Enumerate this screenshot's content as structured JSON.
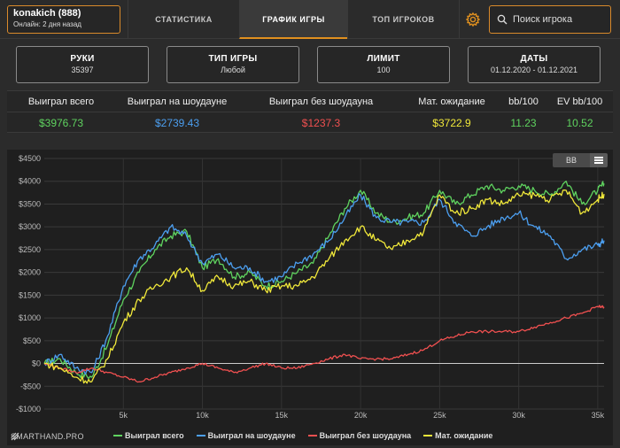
{
  "profile": {
    "name": "konakich (888)",
    "status": "Онлайн: 2 дня назад"
  },
  "nav": {
    "tabs": [
      {
        "label": "СТАТИСТИКА",
        "active": false
      },
      {
        "label": "ГРАФИК ИГРЫ",
        "active": true
      },
      {
        "label": "ТОП ИГРОКОВ",
        "active": false
      }
    ],
    "settings_icon": "gear-icon",
    "search": {
      "placeholder": "Поиск игрока",
      "icon": "search-icon"
    }
  },
  "filters": [
    {
      "title": "РУКИ",
      "value": "35397"
    },
    {
      "title": "ТИП ИГРЫ",
      "value": "Любой"
    },
    {
      "title": "ЛИМИТ",
      "value": "100"
    },
    {
      "title": "ДАТЫ",
      "value": "01.12.2020 - 01.12.2021"
    }
  ],
  "stats": [
    {
      "label": "Выиграл всего",
      "value": "$3976.73",
      "color": "#5fd35f"
    },
    {
      "label": "Выиграл на шоудауне",
      "value": "$2739.43",
      "color": "#4c9ff0"
    },
    {
      "label": "Выиграл без шоудауна",
      "value": "$1237.3",
      "color": "#f05050"
    },
    {
      "label": "Мат. ожидание",
      "value": "$3722.9",
      "color": "#f0e83a"
    },
    {
      "label": "bb/100",
      "value": "11.23",
      "color": "#5fd35f"
    },
    {
      "label": "EV bb/100",
      "value": "10.52",
      "color": "#5fd35f"
    }
  ],
  "chart_toggle": "BB",
  "brand": "SMARTHAND.PRO",
  "chart_data": {
    "type": "line",
    "xlabel": "",
    "ylabel": "",
    "xlim": [
      0,
      35397
    ],
    "ylim": [
      -1000,
      4500
    ],
    "x_ticks": [
      5000,
      10000,
      15000,
      20000,
      25000,
      30000,
      35000
    ],
    "x_tick_labels": [
      "5k",
      "10k",
      "15k",
      "20k",
      "25k",
      "30k",
      "35k"
    ],
    "y_ticks": [
      -1000,
      -500,
      0,
      500,
      1000,
      1500,
      2000,
      2500,
      3000,
      3500,
      4000,
      4500
    ],
    "y_tick_labels": [
      "-$1000",
      "-$500",
      "$0",
      "$500",
      "$1000",
      "$1500",
      "$2000",
      "$2500",
      "$3000",
      "$3500",
      "$4000",
      "$4500"
    ],
    "grid": true,
    "legend_position": "bottom",
    "series": [
      {
        "name": "Выиграл всего",
        "color": "#5fd35f",
        "x": [
          0,
          1000,
          2000,
          3000,
          4000,
          5000,
          6000,
          7000,
          8000,
          9000,
          10000,
          11000,
          12000,
          13000,
          14000,
          15000,
          16000,
          17000,
          18000,
          19000,
          20000,
          21000,
          22000,
          23000,
          24000,
          25000,
          26000,
          27000,
          28000,
          29000,
          30000,
          31000,
          32000,
          33000,
          34000,
          35000,
          35397
        ],
        "y": [
          0,
          100,
          -200,
          -300,
          400,
          1400,
          2000,
          2500,
          2800,
          2900,
          2100,
          2300,
          1900,
          2000,
          1700,
          1800,
          2000,
          2200,
          2800,
          3400,
          3800,
          3300,
          3100,
          3200,
          3300,
          3800,
          3500,
          3700,
          3900,
          3800,
          3900,
          3800,
          3700,
          4000,
          3500,
          3800,
          3950
        ]
      },
      {
        "name": "Выиграл на шоудауне",
        "color": "#4c9ff0",
        "x": [
          0,
          1000,
          2000,
          3000,
          4000,
          5000,
          6000,
          7000,
          8000,
          9000,
          10000,
          11000,
          12000,
          13000,
          14000,
          15000,
          16000,
          17000,
          18000,
          19000,
          20000,
          21000,
          22000,
          23000,
          24000,
          25000,
          26000,
          27000,
          28000,
          29000,
          30000,
          31000,
          32000,
          33000,
          34000,
          35000,
          35397
        ],
        "y": [
          0,
          200,
          -100,
          -200,
          600,
          1700,
          2300,
          2600,
          3000,
          2800,
          2200,
          2400,
          2100,
          2100,
          1800,
          1900,
          2200,
          2400,
          2700,
          3200,
          3700,
          3200,
          3100,
          3100,
          3100,
          3600,
          3100,
          2800,
          3000,
          3200,
          3300,
          3000,
          2800,
          2300,
          2500,
          2600,
          2700
        ]
      },
      {
        "name": "Выиграл без шоудауна",
        "color": "#f05050",
        "x": [
          0,
          1000,
          2000,
          3000,
          4000,
          5000,
          6000,
          7000,
          8000,
          9000,
          10000,
          11000,
          12000,
          13000,
          14000,
          15000,
          16000,
          17000,
          18000,
          19000,
          20000,
          21000,
          22000,
          23000,
          24000,
          25000,
          26000,
          27000,
          28000,
          29000,
          30000,
          31000,
          32000,
          33000,
          34000,
          35000,
          35397
        ],
        "y": [
          0,
          -100,
          -200,
          -100,
          -200,
          -300,
          -400,
          -300,
          -200,
          -100,
          0,
          -100,
          -200,
          -100,
          0,
          -100,
          -100,
          0,
          100,
          200,
          100,
          100,
          100,
          200,
          300,
          500,
          600,
          700,
          700,
          700,
          700,
          800,
          900,
          1000,
          1100,
          1250,
          1240
        ]
      },
      {
        "name": "Мат. ожидание",
        "color": "#f0e83a",
        "x": [
          0,
          1000,
          2000,
          3000,
          4000,
          5000,
          6000,
          7000,
          8000,
          9000,
          10000,
          11000,
          12000,
          13000,
          14000,
          15000,
          16000,
          17000,
          18000,
          19000,
          20000,
          21000,
          22000,
          23000,
          24000,
          25000,
          26000,
          27000,
          28000,
          29000,
          30000,
          31000,
          32000,
          33000,
          34000,
          35000,
          35397
        ],
        "y": [
          0,
          -100,
          -300,
          -400,
          100,
          900,
          1400,
          1700,
          1900,
          2100,
          1600,
          1900,
          1700,
          1800,
          1600,
          1700,
          1700,
          1900,
          2300,
          2700,
          3000,
          2700,
          2500,
          2700,
          2900,
          3700,
          3300,
          3400,
          3600,
          3500,
          3700,
          3700,
          3600,
          3800,
          3300,
          3600,
          3720
        ]
      }
    ]
  }
}
